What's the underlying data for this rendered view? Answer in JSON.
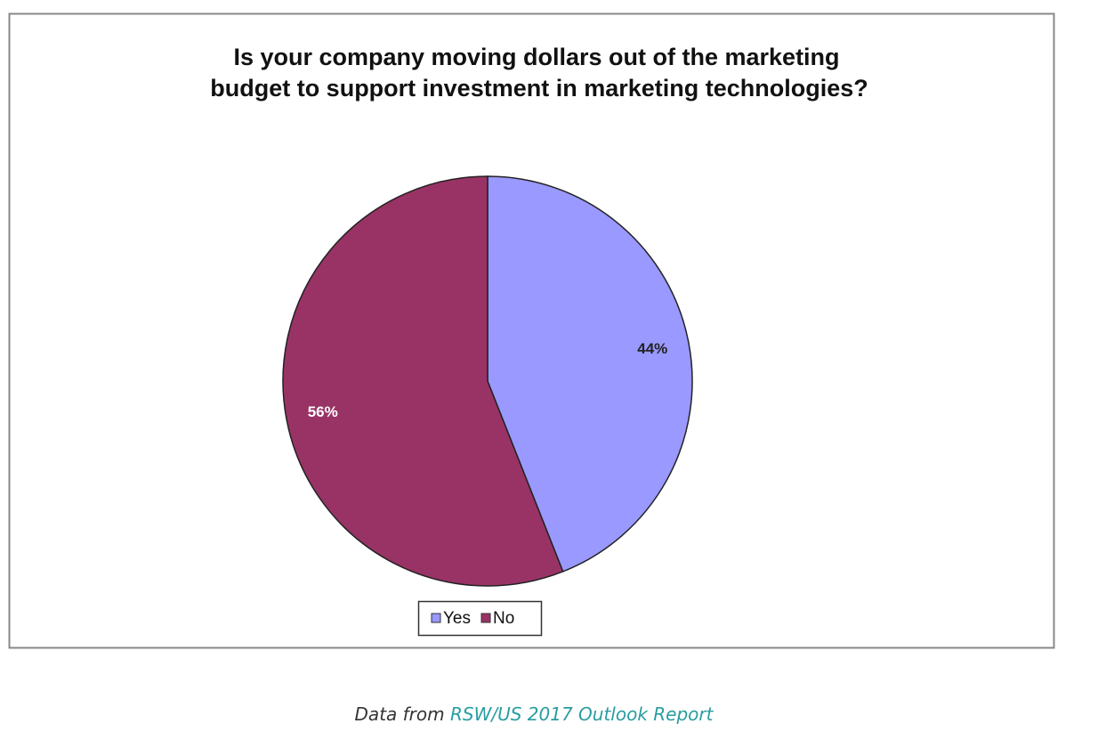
{
  "chart_data": {
    "type": "pie",
    "title": [
      "Is your company moving dollars out of the marketing",
      "budget to support investment in marketing technologies?"
    ],
    "categories": [
      "Yes",
      "No"
    ],
    "values": [
      44,
      56
    ],
    "value_labels": [
      "44%",
      "56%"
    ],
    "colors": [
      "#9999ff",
      "#993366"
    ],
    "label_colors": [
      "#222222",
      "#ffffff"
    ],
    "legend": "bottom"
  },
  "caption": {
    "prefix": "Data from",
    "link": "RSW/US 2017 Outlook Report"
  }
}
